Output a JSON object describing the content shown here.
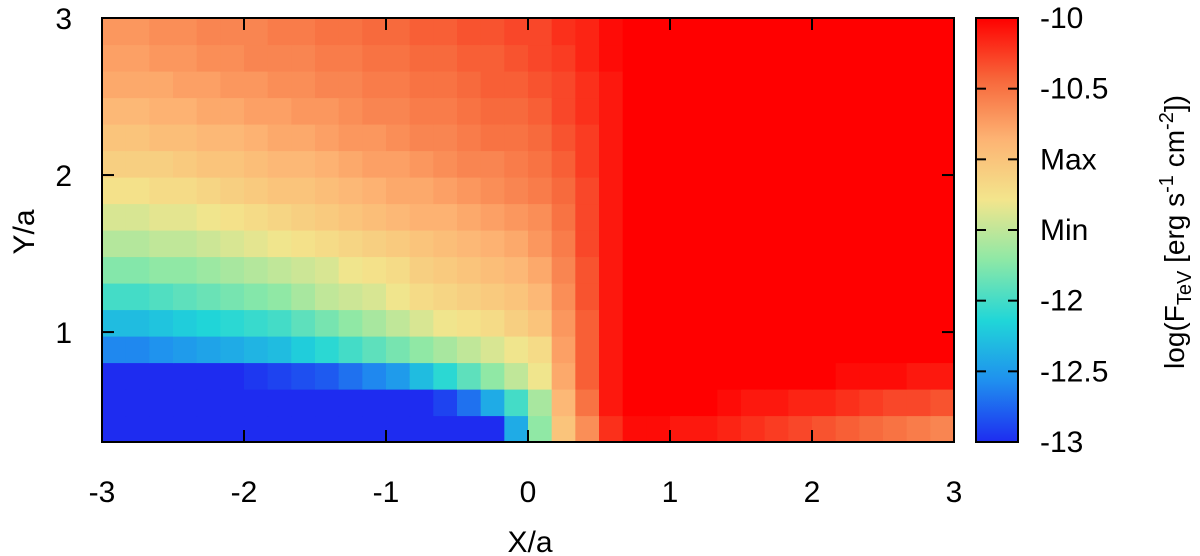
{
  "chart_data": {
    "type": "heatmap",
    "xlabel": "X/a",
    "ylabel": "Y/a",
    "xlim": [
      -3,
      3
    ],
    "ylim": [
      0.3,
      3
    ],
    "x_ticks": [
      -3,
      -2,
      -1,
      0,
      1,
      2,
      3
    ],
    "y_ticks": [
      1,
      2,
      3
    ],
    "grid": false,
    "colorbar": {
      "label": "log(F_TeV [erg s^-1 cm^-2])",
      "label_parts": {
        "pre": "log(F",
        "sub": "TeV",
        "mid1": " [erg s",
        "sup1": "-1",
        "mid2": " cm",
        "sup2": "-2",
        "post": "])"
      },
      "range": [
        -13,
        -10
      ],
      "ticks": [
        {
          "value": -10,
          "label": "-10"
        },
        {
          "value": -10.5,
          "label": "-10.5"
        },
        {
          "value": -11.0,
          "label": "Max"
        },
        {
          "value": -11.5,
          "label": "Min"
        },
        {
          "value": -12,
          "label": "-12"
        },
        {
          "value": -12.5,
          "label": "-12.5"
        },
        {
          "value": -13,
          "label": "-13"
        }
      ],
      "colormap": [
        "#1e2cf0",
        "#1f8fef",
        "#20d6d8",
        "#8de8a6",
        "#f3e58c",
        "#fdb373",
        "#f7663a",
        "#ff0000"
      ]
    },
    "grid_spec": {
      "x_start": -3,
      "x_step": 0.1667,
      "nx": 36,
      "y_start": 0.3,
      "y_step": 0.1667,
      "ny": 16,
      "value_model": "log flux field; rows ordered from Y=0.3 (bottom) to Y=3 (top)"
    },
    "values": [
      [
        -13.0,
        -13.0,
        -13.0,
        -13.0,
        -13.0,
        -13.0,
        -13.0,
        -13.0,
        -13.0,
        -13.0,
        -13.0,
        -13.0,
        -13.0,
        -13.0,
        -13.0,
        -13.0,
        -13.0,
        -12.4,
        -11.7,
        -11.0,
        -10.65,
        -10.2,
        -10.05,
        -10.05,
        -10.1,
        -10.1,
        -10.15,
        -10.2,
        -10.25,
        -10.3,
        -10.35,
        -10.4,
        -10.45,
        -10.5,
        -10.55,
        -10.6
      ],
      [
        -13.0,
        -13.0,
        -13.0,
        -13.0,
        -13.0,
        -13.0,
        -13.0,
        -13.0,
        -13.0,
        -13.0,
        -13.0,
        -13.0,
        -13.0,
        -13.0,
        -12.9,
        -12.7,
        -12.4,
        -12.0,
        -11.6,
        -10.9,
        -10.5,
        -10.1,
        -10.0,
        -10.0,
        -10.0,
        -10.0,
        -10.05,
        -10.1,
        -10.1,
        -10.15,
        -10.15,
        -10.2,
        -10.25,
        -10.3,
        -10.3,
        -10.35
      ],
      [
        -13.0,
        -13.0,
        -13.0,
        -13.0,
        -13.0,
        -13.0,
        -12.95,
        -12.9,
        -12.85,
        -12.8,
        -12.7,
        -12.6,
        -12.5,
        -12.3,
        -12.1,
        -11.9,
        -11.7,
        -11.5,
        -11.3,
        -10.8,
        -10.4,
        -10.1,
        -10.0,
        -10.0,
        -10.0,
        -10.0,
        -10.0,
        -10.0,
        -10.0,
        -10.0,
        -10.0,
        -10.05,
        -10.05,
        -10.05,
        -10.1,
        -10.1
      ],
      [
        -12.6,
        -12.6,
        -12.55,
        -12.5,
        -12.45,
        -12.4,
        -12.35,
        -12.3,
        -12.2,
        -12.1,
        -12.0,
        -11.9,
        -11.8,
        -11.7,
        -11.6,
        -11.5,
        -11.4,
        -11.3,
        -11.2,
        -10.75,
        -10.4,
        -10.1,
        -10.0,
        -10.0,
        -10.0,
        -10.0,
        -10.0,
        -10.0,
        -10.0,
        -10.0,
        -10.0,
        -10.0,
        -10.0,
        -10.0,
        -10.0,
        -10.0
      ],
      [
        -12.3,
        -12.3,
        -12.25,
        -12.2,
        -12.15,
        -12.1,
        -12.05,
        -12.0,
        -11.9,
        -11.8,
        -11.7,
        -11.6,
        -11.5,
        -11.4,
        -11.3,
        -11.25,
        -11.2,
        -11.1,
        -11.0,
        -10.7,
        -10.4,
        -10.1,
        -10.0,
        -10.0,
        -10.0,
        -10.0,
        -10.0,
        -10.0,
        -10.0,
        -10.0,
        -10.0,
        -10.0,
        -10.0,
        -10.0,
        -10.0,
        -10.0
      ],
      [
        -12.0,
        -12.0,
        -11.95,
        -11.9,
        -11.85,
        -11.8,
        -11.75,
        -11.7,
        -11.6,
        -11.5,
        -11.45,
        -11.4,
        -11.3,
        -11.2,
        -11.15,
        -11.1,
        -11.05,
        -11.0,
        -10.9,
        -10.65,
        -10.35,
        -10.1,
        -10.0,
        -10.0,
        -10.0,
        -10.0,
        -10.0,
        -10.0,
        -10.0,
        -10.0,
        -10.0,
        -10.0,
        -10.0,
        -10.0,
        -10.0,
        -10.0
      ],
      [
        -11.75,
        -11.75,
        -11.7,
        -11.7,
        -11.65,
        -11.6,
        -11.55,
        -11.5,
        -11.45,
        -11.4,
        -11.3,
        -11.25,
        -11.2,
        -11.1,
        -11.05,
        -11.0,
        -10.95,
        -10.9,
        -10.8,
        -10.6,
        -10.35,
        -10.1,
        -10.0,
        -10.0,
        -10.0,
        -10.0,
        -10.0,
        -10.0,
        -10.0,
        -10.0,
        -10.0,
        -10.0,
        -10.0,
        -10.0,
        -10.0,
        -10.0
      ],
      [
        -11.55,
        -11.55,
        -11.5,
        -11.5,
        -11.45,
        -11.4,
        -11.35,
        -11.3,
        -11.25,
        -11.2,
        -11.15,
        -11.1,
        -11.05,
        -11.0,
        -10.95,
        -10.9,
        -10.85,
        -10.8,
        -10.7,
        -10.55,
        -10.3,
        -10.1,
        -10.0,
        -10.0,
        -10.0,
        -10.0,
        -10.0,
        -10.0,
        -10.0,
        -10.0,
        -10.0,
        -10.0,
        -10.0,
        -10.0,
        -10.0,
        -10.0
      ],
      [
        -11.4,
        -11.4,
        -11.35,
        -11.35,
        -11.3,
        -11.25,
        -11.2,
        -11.15,
        -11.1,
        -11.05,
        -11.0,
        -10.95,
        -10.9,
        -10.85,
        -10.85,
        -10.8,
        -10.75,
        -10.7,
        -10.65,
        -10.5,
        -10.3,
        -10.1,
        -10.0,
        -10.0,
        -10.0,
        -10.0,
        -10.0,
        -10.0,
        -10.0,
        -10.0,
        -10.0,
        -10.0,
        -10.0,
        -10.0,
        -10.0,
        -10.0
      ],
      [
        -11.25,
        -11.25,
        -11.2,
        -11.2,
        -11.15,
        -11.1,
        -11.05,
        -11.0,
        -11.0,
        -10.95,
        -10.9,
        -10.85,
        -10.8,
        -10.8,
        -10.75,
        -10.7,
        -10.65,
        -10.6,
        -10.55,
        -10.45,
        -10.3,
        -10.1,
        -10.0,
        -10.0,
        -10.0,
        -10.0,
        -10.0,
        -10.0,
        -10.0,
        -10.0,
        -10.0,
        -10.0,
        -10.0,
        -10.0,
        -10.0,
        -10.0
      ],
      [
        -11.1,
        -11.1,
        -11.1,
        -11.05,
        -11.0,
        -11.0,
        -10.95,
        -10.9,
        -10.9,
        -10.85,
        -10.8,
        -10.75,
        -10.75,
        -10.7,
        -10.65,
        -10.6,
        -10.6,
        -10.55,
        -10.5,
        -10.4,
        -10.25,
        -10.1,
        -10.0,
        -10.0,
        -10.0,
        -10.0,
        -10.0,
        -10.0,
        -10.0,
        -10.0,
        -10.0,
        -10.0,
        -10.0,
        -10.0,
        -10.0,
        -10.0
      ],
      [
        -11.0,
        -11.0,
        -10.95,
        -10.95,
        -10.9,
        -10.9,
        -10.85,
        -10.8,
        -10.8,
        -10.75,
        -10.7,
        -10.7,
        -10.65,
        -10.6,
        -10.6,
        -10.55,
        -10.5,
        -10.5,
        -10.45,
        -10.35,
        -10.25,
        -10.1,
        -10.0,
        -10.0,
        -10.0,
        -10.0,
        -10.0,
        -10.0,
        -10.0,
        -10.0,
        -10.0,
        -10.0,
        -10.0,
        -10.0,
        -10.0,
        -10.0
      ],
      [
        -10.9,
        -10.9,
        -10.85,
        -10.85,
        -10.8,
        -10.8,
        -10.75,
        -10.75,
        -10.7,
        -10.7,
        -10.65,
        -10.6,
        -10.6,
        -10.55,
        -10.55,
        -10.5,
        -10.45,
        -10.45,
        -10.4,
        -10.3,
        -10.2,
        -10.1,
        -10.0,
        -10.0,
        -10.0,
        -10.0,
        -10.0,
        -10.0,
        -10.0,
        -10.0,
        -10.0,
        -10.0,
        -10.0,
        -10.0,
        -10.0,
        -10.0
      ],
      [
        -10.8,
        -10.8,
        -10.8,
        -10.75,
        -10.75,
        -10.7,
        -10.7,
        -10.65,
        -10.65,
        -10.6,
        -10.6,
        -10.55,
        -10.55,
        -10.5,
        -10.5,
        -10.45,
        -10.4,
        -10.4,
        -10.35,
        -10.3,
        -10.2,
        -10.1,
        -10.0,
        -10.0,
        -10.0,
        -10.0,
        -10.0,
        -10.0,
        -10.0,
        -10.0,
        -10.0,
        -10.0,
        -10.0,
        -10.0,
        -10.0,
        -10.0
      ],
      [
        -10.75,
        -10.75,
        -10.7,
        -10.7,
        -10.65,
        -10.65,
        -10.6,
        -10.6,
        -10.6,
        -10.55,
        -10.55,
        -10.5,
        -10.5,
        -10.45,
        -10.45,
        -10.4,
        -10.4,
        -10.35,
        -10.3,
        -10.25,
        -10.15,
        -10.05,
        -10.0,
        -10.0,
        -10.0,
        -10.0,
        -10.0,
        -10.0,
        -10.0,
        -10.0,
        -10.0,
        -10.0,
        -10.0,
        -10.0,
        -10.0,
        -10.0
      ],
      [
        -10.7,
        -10.7,
        -10.65,
        -10.65,
        -10.6,
        -10.6,
        -10.6,
        -10.55,
        -10.55,
        -10.5,
        -10.5,
        -10.45,
        -10.45,
        -10.4,
        -10.4,
        -10.35,
        -10.35,
        -10.3,
        -10.3,
        -10.2,
        -10.15,
        -10.05,
        -10.0,
        -10.0,
        -10.0,
        -10.0,
        -10.0,
        -10.0,
        -10.0,
        -10.0,
        -10.0,
        -10.0,
        -10.0,
        -10.0,
        -10.0,
        -10.0
      ]
    ]
  }
}
